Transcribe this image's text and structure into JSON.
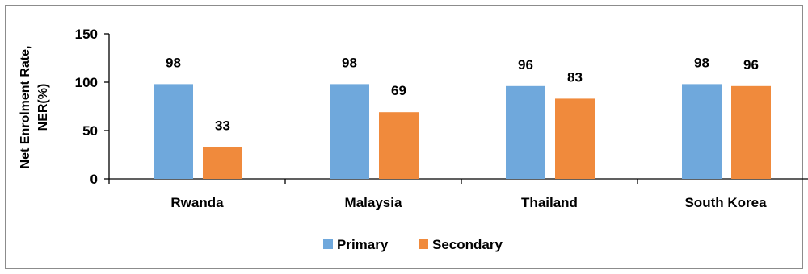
{
  "chart_data": {
    "type": "bar",
    "title": "",
    "xlabel": "",
    "ylabel": "Net Enrolment Rate, NER(%)",
    "ylabel_lines": [
      "Net Enrolment Rate,",
      "NER(%)"
    ],
    "categories": [
      "Rwanda",
      "Malaysia",
      "Thailand",
      "South Korea"
    ],
    "series": [
      {
        "name": "Primary",
        "values": [
          98,
          98,
          96,
          98
        ],
        "color": "#6FA8DC"
      },
      {
        "name": "Secondary",
        "values": [
          33,
          69,
          83,
          96
        ],
        "color": "#F08A3C"
      }
    ],
    "ylim": [
      0,
      150
    ],
    "yticks": [
      0,
      50,
      100,
      150
    ],
    "grid": false,
    "legend_position": "bottom",
    "data_labels": true
  }
}
